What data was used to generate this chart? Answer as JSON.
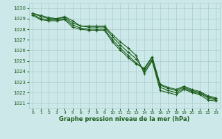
{
  "xlabel": "Graphe pression niveau de la mer (hPa)",
  "xlim": [
    -0.5,
    23.5
  ],
  "ylim": [
    1020.5,
    1030.5
  ],
  "yticks": [
    1021,
    1022,
    1023,
    1024,
    1025,
    1026,
    1027,
    1028,
    1029,
    1030
  ],
  "xticks": [
    0,
    1,
    2,
    3,
    4,
    5,
    6,
    7,
    8,
    9,
    10,
    11,
    12,
    13,
    14,
    15,
    16,
    17,
    18,
    19,
    20,
    21,
    22,
    23
  ],
  "bg_color": "#cce8e8",
  "grid_color": "#aacccc",
  "line_color": "#1a5c1a",
  "marker": "+",
  "line_width": 0.8,
  "series": [
    [
      1029.5,
      1029.3,
      1029.1,
      1029.0,
      1029.2,
      1028.8,
      1028.3,
      1028.3,
      1028.3,
      1028.3,
      1027.5,
      1026.8,
      1026.2,
      1025.5,
      1023.8,
      1025.0,
      1022.2,
      1022.0,
      1021.8,
      1022.3,
      1022.0,
      1021.8,
      1021.3,
      1021.2
    ],
    [
      1029.5,
      1029.2,
      1029.0,
      1029.0,
      1029.1,
      1028.6,
      1028.3,
      1028.2,
      1028.2,
      1028.2,
      1027.3,
      1026.5,
      1025.8,
      1025.2,
      1024.0,
      1025.1,
      1022.5,
      1022.2,
      1022.0,
      1022.4,
      1022.1,
      1021.9,
      1021.5,
      1021.3
    ],
    [
      1029.4,
      1029.0,
      1028.9,
      1028.9,
      1029.0,
      1028.4,
      1028.1,
      1028.0,
      1028.0,
      1028.0,
      1027.0,
      1026.2,
      1025.5,
      1024.8,
      1024.2,
      1025.3,
      1022.7,
      1022.4,
      1022.2,
      1022.5,
      1022.2,
      1022.0,
      1021.6,
      1021.4
    ],
    [
      1029.3,
      1028.9,
      1028.8,
      1028.8,
      1028.9,
      1028.2,
      1028.0,
      1027.9,
      1027.9,
      1027.9,
      1026.8,
      1026.0,
      1025.3,
      1024.7,
      1024.3,
      1025.4,
      1022.8,
      1022.5,
      1022.3,
      1022.6,
      1022.3,
      1022.1,
      1021.7,
      1021.5
    ]
  ]
}
